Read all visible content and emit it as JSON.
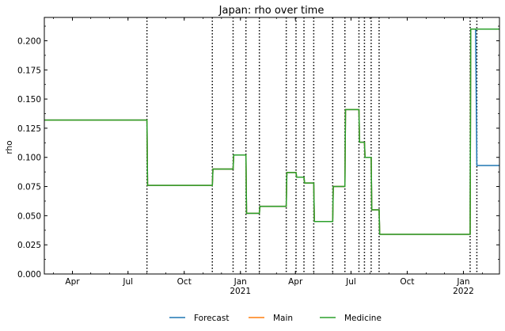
{
  "chart_data": {
    "type": "line",
    "title": "Japan: rho over time",
    "xlabel": "",
    "ylabel": "rho",
    "x_range": [
      "2020-02-15",
      "2022-03-01"
    ],
    "ylim": [
      0,
      0.22
    ],
    "y_ticks": [
      "0.000",
      "0.025",
      "0.050",
      "0.075",
      "0.100",
      "0.125",
      "0.150",
      "0.175",
      "0.200"
    ],
    "x_ticks": [
      {
        "date": "2020-04-01",
        "label": "Apr",
        "sub": ""
      },
      {
        "date": "2020-07-01",
        "label": "Jul",
        "sub": ""
      },
      {
        "date": "2020-10-01",
        "label": "Oct",
        "sub": ""
      },
      {
        "date": "2021-01-01",
        "label": "Jan",
        "sub": "2021"
      },
      {
        "date": "2021-04-01",
        "label": "Apr",
        "sub": ""
      },
      {
        "date": "2021-07-01",
        "label": "Jul",
        "sub": ""
      },
      {
        "date": "2021-10-01",
        "label": "Oct",
        "sub": ""
      },
      {
        "date": "2022-01-01",
        "label": "Jan",
        "sub": "2022"
      }
    ],
    "change_points": [
      "2020-08-01",
      "2020-11-16",
      "2020-12-20",
      "2021-01-10",
      "2021-02-01",
      "2021-03-17",
      "2021-04-02",
      "2021-04-15",
      "2021-05-01",
      "2021-06-01",
      "2021-06-21",
      "2021-07-14",
      "2021-07-23",
      "2021-08-03",
      "2021-08-16",
      "2022-01-12",
      "2022-01-23"
    ],
    "grid": false,
    "legend_position": "bottom-center",
    "series": [
      {
        "name": "Forecast",
        "color": "#1f77b4",
        "x": [
          "2020-02-15",
          "2020-08-01",
          "2020-08-02",
          "2020-11-16",
          "2020-11-17",
          "2020-12-20",
          "2020-12-21",
          "2021-01-10",
          "2021-01-11",
          "2021-02-01",
          "2021-02-02",
          "2021-03-17",
          "2021-03-18",
          "2021-04-02",
          "2021-04-03",
          "2021-04-15",
          "2021-04-16",
          "2021-05-01",
          "2021-05-02",
          "2021-06-01",
          "2021-06-02",
          "2021-06-21",
          "2021-06-22",
          "2021-07-14",
          "2021-07-15",
          "2021-07-23",
          "2021-07-24",
          "2021-08-03",
          "2021-08-04",
          "2021-08-16",
          "2021-08-17",
          "2022-01-12",
          "2022-01-13",
          "2022-01-21",
          "2022-01-23",
          "2022-03-01"
        ],
        "y": [
          0.132,
          0.132,
          0.076,
          0.076,
          0.09,
          0.09,
          0.102,
          0.102,
          0.052,
          0.052,
          0.058,
          0.058,
          0.087,
          0.087,
          0.083,
          0.083,
          0.078,
          0.078,
          0.045,
          0.045,
          0.075,
          0.075,
          0.141,
          0.141,
          0.113,
          0.113,
          0.1,
          0.1,
          0.055,
          0.055,
          0.034,
          0.034,
          0.21,
          0.21,
          0.093,
          0.093
        ]
      },
      {
        "name": "Main",
        "color": "#ff7f0e",
        "x": [
          "2020-02-15",
          "2020-08-01",
          "2020-08-02",
          "2020-11-16",
          "2020-11-17",
          "2020-12-20",
          "2020-12-21",
          "2021-01-10",
          "2021-01-11",
          "2021-02-01",
          "2021-02-02",
          "2021-03-17",
          "2021-03-18",
          "2021-04-02",
          "2021-04-03",
          "2021-04-15",
          "2021-04-16",
          "2021-05-01",
          "2021-05-02",
          "2021-06-01",
          "2021-06-02",
          "2021-06-21",
          "2021-06-22",
          "2021-07-14",
          "2021-07-15",
          "2021-07-23",
          "2021-07-24",
          "2021-08-03",
          "2021-08-04",
          "2021-08-16",
          "2021-08-17",
          "2022-01-12",
          "2022-01-13",
          "2022-03-01"
        ],
        "y": [
          0.132,
          0.132,
          0.076,
          0.076,
          0.09,
          0.09,
          0.102,
          0.102,
          0.052,
          0.052,
          0.058,
          0.058,
          0.087,
          0.087,
          0.083,
          0.083,
          0.078,
          0.078,
          0.045,
          0.045,
          0.075,
          0.075,
          0.141,
          0.141,
          0.113,
          0.113,
          0.1,
          0.1,
          0.055,
          0.055,
          0.034,
          0.034,
          0.21,
          0.21
        ]
      },
      {
        "name": "Medicine",
        "color": "#2ca02c",
        "x": [
          "2020-02-15",
          "2020-08-01",
          "2020-08-02",
          "2020-11-16",
          "2020-11-17",
          "2020-12-20",
          "2020-12-21",
          "2021-01-10",
          "2021-01-11",
          "2021-02-01",
          "2021-02-02",
          "2021-03-17",
          "2021-03-18",
          "2021-04-02",
          "2021-04-03",
          "2021-04-15",
          "2021-04-16",
          "2021-05-01",
          "2021-05-02",
          "2021-06-01",
          "2021-06-02",
          "2021-06-21",
          "2021-06-22",
          "2021-07-14",
          "2021-07-15",
          "2021-07-23",
          "2021-07-24",
          "2021-08-03",
          "2021-08-04",
          "2021-08-16",
          "2021-08-17",
          "2022-01-12",
          "2022-01-13",
          "2022-03-01"
        ],
        "y": [
          0.132,
          0.132,
          0.076,
          0.076,
          0.09,
          0.09,
          0.102,
          0.102,
          0.052,
          0.052,
          0.058,
          0.058,
          0.087,
          0.087,
          0.083,
          0.083,
          0.078,
          0.078,
          0.045,
          0.045,
          0.075,
          0.075,
          0.141,
          0.141,
          0.113,
          0.113,
          0.1,
          0.1,
          0.055,
          0.055,
          0.034,
          0.034,
          0.21,
          0.21
        ]
      }
    ]
  }
}
